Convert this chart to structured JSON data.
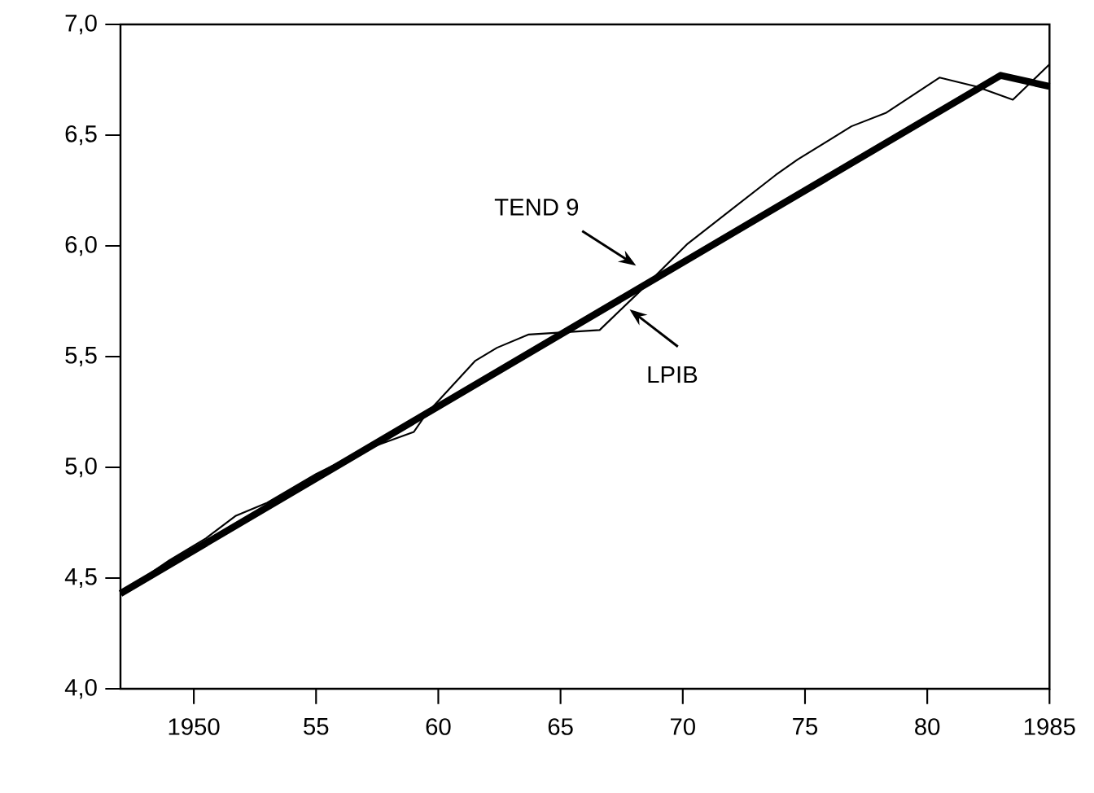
{
  "chart_data": {
    "type": "line",
    "xlim": [
      1947,
      1985
    ],
    "ylim": [
      4,
      7
    ],
    "xticks": [
      1950,
      {
        "value": 1955,
        "label": "55"
      },
      {
        "value": 1960,
        "label": "60"
      },
      {
        "value": 1965,
        "label": "65"
      },
      {
        "value": 1970,
        "label": "70"
      },
      {
        "value": 1975,
        "label": "75"
      },
      {
        "value": 1980,
        "label": "80"
      },
      1985
    ],
    "yticks": [
      {
        "value": 4,
        "label": "4,0"
      },
      {
        "value": 4.5,
        "label": "4,5"
      },
      {
        "value": 5,
        "label": "5,0"
      },
      {
        "value": 5.5,
        "label": "5,5"
      },
      {
        "value": 6,
        "label": "6,0"
      },
      {
        "value": 6.5,
        "label": "6,5"
      },
      {
        "value": 7,
        "label": "7,0"
      }
    ],
    "grid": false,
    "marker": "none",
    "series": [
      {
        "color": "#000000",
        "line_style": "solid",
        "x": [
          1947,
          1983,
          1985
        ],
        "values": [
          4.43,
          6.77,
          6.72
        ]
      },
      {
        "color": "#000000",
        "line_style": "solid",
        "x": [
          1947,
          1949,
          1950.5,
          1951.7,
          1953,
          1955,
          1957,
          1959,
          1959.5,
          1961.5,
          1962.4,
          1963.7,
          1966.6,
          1968.2,
          1970.2,
          1973.8,
          1974.7,
          1976.9,
          1978.3,
          1980.5,
          1982,
          1983.5,
          1985
        ],
        "values": [
          4.43,
          4.58,
          4.68,
          4.78,
          4.84,
          4.97,
          5.08,
          5.16,
          5.24,
          5.48,
          5.54,
          5.6,
          5.62,
          5.79,
          6.01,
          6.32,
          6.39,
          6.54,
          6.6,
          6.76,
          6.72,
          6.66,
          6.82
        ]
      }
    ],
    "annotations": [
      "TEND 9",
      "LPIB"
    ]
  }
}
